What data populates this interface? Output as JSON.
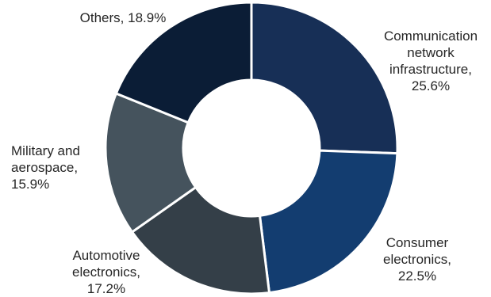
{
  "chart_data": {
    "type": "pie",
    "subtype": "donut",
    "slices": [
      {
        "label": [
          "Communication",
          "network",
          "infrastructure,",
          "25.6%"
        ],
        "category": "Communication network infrastructure",
        "value": 25.6,
        "color": "#172f56"
      },
      {
        "label": [
          "Consumer",
          "electronics,",
          "22.5%"
        ],
        "category": "Consumer electronics",
        "value": 22.5,
        "color": "#133d70"
      },
      {
        "label": [
          "Automotive",
          "electronics,",
          "17.2%"
        ],
        "category": "Automotive electronics",
        "value": 17.2,
        "color": "#343f48"
      },
      {
        "label": [
          "Military and",
          "aerospace,",
          "15.9%"
        ],
        "category": "Military and aerospace",
        "value": 15.9,
        "color": "#45535d"
      },
      {
        "label": [
          "Others, 18.9%"
        ],
        "category": "Others",
        "value": 18.9,
        "color": "#0b1d36"
      }
    ],
    "start_angle_deg": 0,
    "direction": "clockwise",
    "legend": "none"
  }
}
